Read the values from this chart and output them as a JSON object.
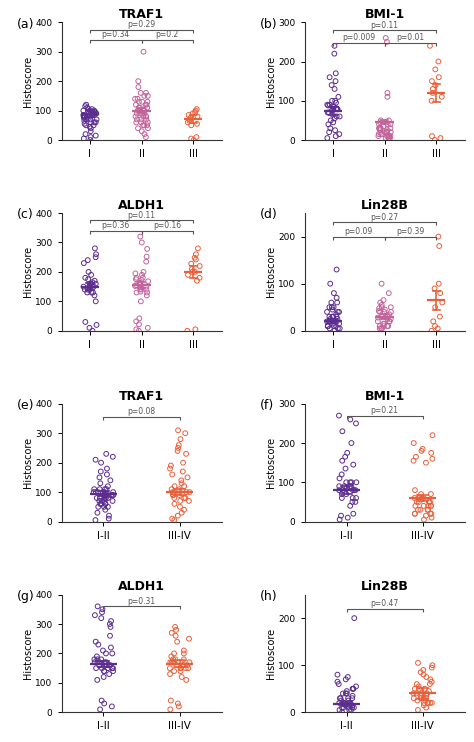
{
  "panels": [
    {
      "label": "(a)",
      "title": "TRAF1",
      "groups": [
        "I",
        "II",
        "III"
      ],
      "ylim": [
        0,
        400
      ],
      "yticks": [
        0,
        100,
        200,
        300,
        400
      ],
      "colors": [
        "#5B2D8E",
        "#C2649A",
        "#E8603A"
      ],
      "means": [
        90,
        100,
        72
      ],
      "sems": [
        12,
        8,
        14
      ],
      "pvals": [
        {
          "g1": 0,
          "g2": 2,
          "text": "p=0.29",
          "y": 375,
          "level": 0
        },
        {
          "g1": 0,
          "g2": 1,
          "text": "p=0.34",
          "y": 340,
          "level": 1
        },
        {
          "g1": 1,
          "g2": 2,
          "text": "p=0.2",
          "y": 340,
          "level": 1
        }
      ],
      "data": [
        [
          85,
          100,
          60,
          80,
          90,
          40,
          110,
          75,
          70,
          100,
          50,
          90,
          95,
          80,
          60,
          105,
          90,
          70,
          80,
          100,
          50,
          60,
          80,
          85,
          95,
          70,
          105,
          80,
          90,
          55,
          115,
          120,
          45,
          65,
          75,
          85,
          95,
          30,
          20,
          15,
          10,
          5,
          0
        ],
        [
          100,
          120,
          80,
          200,
          150,
          60,
          180,
          90,
          110,
          140,
          50,
          130,
          80,
          160,
          100,
          70,
          120,
          90,
          300,
          40,
          150,
          80,
          100,
          110,
          70,
          130,
          90,
          60,
          140,
          100,
          80,
          120,
          50,
          160,
          110,
          90,
          70,
          130,
          30,
          20,
          10,
          40,
          60,
          50
        ],
        [
          70,
          80,
          90,
          100,
          50,
          60,
          75,
          85,
          65,
          0,
          5,
          10,
          95,
          105,
          55
        ]
      ]
    },
    {
      "label": "(b)",
      "title": "BMI-1",
      "groups": [
        "I",
        "II",
        "III"
      ],
      "ylim": [
        0,
        300
      ],
      "yticks": [
        0,
        100,
        200,
        300
      ],
      "colors": [
        "#5B2D8E",
        "#C2649A",
        "#E8603A"
      ],
      "means": [
        75,
        45,
        120
      ],
      "sems": [
        10,
        5,
        22
      ],
      "pvals": [
        {
          "g1": 0,
          "g2": 2,
          "text": "p=0.11",
          "y": 280,
          "level": 0
        },
        {
          "g1": 0,
          "g2": 1,
          "text": "p=0.009",
          "y": 248,
          "level": 1
        },
        {
          "g1": 1,
          "g2": 2,
          "text": "p=0.01",
          "y": 248,
          "level": 1
        }
      ],
      "data": [
        [
          80,
          90,
          60,
          70,
          75,
          40,
          85,
          80,
          65,
          100,
          50,
          90,
          95,
          80,
          55,
          110,
          88,
          70,
          78,
          100,
          45,
          60,
          80,
          85,
          150,
          160,
          170,
          140,
          130,
          220,
          240,
          10,
          5,
          20,
          30,
          15,
          25
        ],
        [
          45,
          20,
          10,
          5,
          30,
          40,
          15,
          25,
          20,
          10,
          5,
          30,
          40,
          50,
          20,
          10,
          5,
          30,
          35,
          15,
          25,
          20,
          10,
          120,
          110,
          50,
          30,
          20,
          10,
          40,
          30,
          15,
          5,
          260,
          250
        ],
        [
          120,
          140,
          160,
          100,
          150,
          180,
          130,
          110,
          10,
          0,
          5,
          240,
          200
        ]
      ]
    },
    {
      "label": "(c)",
      "title": "ALDH1",
      "groups": [
        "I",
        "II",
        "III"
      ],
      "ylim": [
        0,
        400
      ],
      "yticks": [
        0,
        100,
        200,
        300,
        400
      ],
      "colors": [
        "#5B2D8E",
        "#C2649A",
        "#E8603A"
      ],
      "means": [
        150,
        155,
        200
      ],
      "sems": [
        12,
        10,
        20
      ],
      "pvals": [
        {
          "g1": 0,
          "g2": 2,
          "text": "p=0.11",
          "y": 375,
          "level": 0
        },
        {
          "g1": 0,
          "g2": 1,
          "text": "p=0.36",
          "y": 340,
          "level": 1
        },
        {
          "g1": 1,
          "g2": 2,
          "text": "p=0.16",
          "y": 340,
          "level": 1
        }
      ],
      "data": [
        [
          150,
          160,
          140,
          180,
          130,
          170,
          150,
          140,
          120,
          160,
          150,
          130,
          175,
          140,
          160,
          150,
          130,
          165,
          100,
          280,
          250,
          230,
          200,
          190,
          10,
          0,
          20,
          30,
          240,
          260
        ],
        [
          150,
          160,
          140,
          195,
          180,
          130,
          168,
          155,
          142,
          120,
          163,
          152,
          133,
          175,
          180,
          140,
          162,
          150,
          130,
          172,
          100,
          278,
          252,
          235,
          200,
          190,
          10,
          0,
          22,
          32,
          320,
          300,
          5,
          42
        ],
        [
          200,
          220,
          180,
          190,
          210,
          170,
          248,
          260,
          280,
          228,
          242,
          200,
          0,
          5
        ]
      ]
    },
    {
      "label": "(d)",
      "title": "Lin28B",
      "groups": [
        "I",
        "II",
        "III"
      ],
      "ylim": [
        0,
        250
      ],
      "yticks": [
        0,
        100,
        200
      ],
      "colors": [
        "#5B2D8E",
        "#C2649A",
        "#E8603A"
      ],
      "means": [
        20,
        30,
        65
      ],
      "sems": [
        4,
        5,
        20
      ],
      "pvals": [
        {
          "g1": 0,
          "g2": 2,
          "text": "p=0.27",
          "y": 230,
          "level": 0
        },
        {
          "g1": 0,
          "g2": 1,
          "text": "p=0.09",
          "y": 200,
          "level": 1
        },
        {
          "g1": 1,
          "g2": 2,
          "text": "p=0.39",
          "y": 200,
          "level": 1
        }
      ],
      "data": [
        [
          20,
          30,
          10,
          50,
          40,
          5,
          25,
          15,
          10,
          20,
          30,
          40,
          50,
          10,
          20,
          30,
          5,
          15,
          25,
          10,
          130,
          100,
          80,
          60,
          50,
          40,
          30,
          20,
          10,
          5,
          0,
          45,
          35,
          60,
          70
        ],
        [
          30,
          40,
          50,
          20,
          10,
          5,
          25,
          15,
          30,
          40,
          50,
          10,
          20,
          28,
          5,
          15,
          25,
          10,
          30,
          42,
          48,
          20,
          10,
          5,
          80,
          100,
          60,
          40,
          30,
          35,
          45,
          55,
          65
        ],
        [
          60,
          80,
          90,
          100,
          50,
          30,
          20,
          10,
          5,
          0,
          180,
          200
        ]
      ]
    },
    {
      "label": "(e)",
      "title": "TRAF1",
      "groups": [
        "I-II",
        "III-IV"
      ],
      "ylim": [
        0,
        400
      ],
      "yticks": [
        0,
        100,
        200,
        300,
        400
      ],
      "colors": [
        "#5B2D8E",
        "#E8603A"
      ],
      "means": [
        95,
        100
      ],
      "sems": [
        8,
        10
      ],
      "pvals": [
        {
          "g1": 0,
          "g2": 1,
          "text": "p=0.08",
          "y": 355,
          "level": 0
        }
      ],
      "data": [
        [
          100,
          120,
          80,
          90,
          110,
          70,
          100,
          90,
          80,
          100,
          50,
          90,
          100,
          80,
          60,
          110,
          90,
          70,
          80,
          100,
          50,
          60,
          80,
          90,
          100,
          70,
          110,
          80,
          90,
          60,
          200,
          180,
          160,
          140,
          220,
          150,
          130,
          170,
          110,
          70,
          60,
          50,
          30,
          20,
          10,
          5,
          40,
          230,
          210
        ],
        [
          100,
          120,
          80,
          90,
          110,
          70,
          100,
          90,
          80,
          100,
          50,
          90,
          100,
          80,
          300,
          310,
          280,
          260,
          250,
          230,
          240,
          200,
          190,
          10,
          5,
          30,
          20,
          40,
          60,
          70,
          130,
          150,
          160,
          120,
          110,
          140,
          170,
          180
        ]
      ]
    },
    {
      "label": "(f)",
      "title": "BMI-1",
      "groups": [
        "I-II",
        "III-IV"
      ],
      "ylim": [
        0,
        300
      ],
      "yticks": [
        0,
        100,
        200,
        300
      ],
      "colors": [
        "#5B2D8E",
        "#E8603A"
      ],
      "means": [
        80,
        60
      ],
      "sems": [
        10,
        8
      ],
      "pvals": [
        {
          "g1": 0,
          "g2": 1,
          "text": "p=0.21",
          "y": 270,
          "level": 0
        }
      ],
      "data": [
        [
          80,
          100,
          60,
          120,
          90,
          40,
          85,
          80,
          70,
          100,
          50,
          90,
          100,
          80,
          60,
          110,
          90,
          70,
          80,
          100,
          50,
          60,
          80,
          90,
          270,
          260,
          250,
          230,
          200,
          10,
          5,
          20,
          15,
          155,
          165,
          175,
          145,
          135
        ],
        [
          60,
          80,
          40,
          50,
          70,
          30,
          60,
          50,
          40,
          60,
          20,
          50,
          60,
          40,
          20,
          70,
          50,
          30,
          40,
          60,
          20,
          30,
          40,
          50,
          200,
          220,
          180,
          160,
          150,
          10,
          5,
          15,
          20,
          30,
          165,
          175,
          185,
          155
        ]
      ]
    },
    {
      "label": "(g)",
      "title": "ALDH1",
      "groups": [
        "I-II",
        "III-IV"
      ],
      "ylim": [
        0,
        400
      ],
      "yticks": [
        0,
        100,
        200,
        300,
        400
      ],
      "colors": [
        "#5B2D8E",
        "#E8603A"
      ],
      "means": [
        165,
        165
      ],
      "sems": [
        10,
        12
      ],
      "pvals": [
        {
          "g1": 0,
          "g2": 1,
          "text": "p=0.31",
          "y": 360,
          "level": 0
        }
      ],
      "data": [
        [
          160,
          170,
          150,
          200,
          180,
          140,
          170,
          160,
          150,
          140,
          170,
          160,
          150,
          170,
          180,
          150,
          170,
          160,
          150,
          180,
          110,
          290,
          260,
          240,
          210,
          200,
          20,
          10,
          30,
          40,
          360,
          350,
          330,
          310,
          300,
          320,
          340,
          120,
          130,
          140,
          190,
          220,
          230
        ],
        [
          160,
          170,
          150,
          200,
          180,
          140,
          170,
          160,
          150,
          140,
          170,
          160,
          150,
          170,
          180,
          150,
          170,
          160,
          150,
          180,
          110,
          290,
          260,
          240,
          210,
          200,
          20,
          10,
          30,
          40,
          280,
          270,
          250,
          130,
          120,
          190
        ]
      ]
    },
    {
      "label": "(h)",
      "title": "Lin28B",
      "groups": [
        "I-II",
        "III-IV"
      ],
      "ylim": [
        0,
        250
      ],
      "yticks": [
        0,
        100,
        200
      ],
      "colors": [
        "#5B2D8E",
        "#E8603A"
      ],
      "means": [
        18,
        40
      ],
      "sems": [
        4,
        12
      ],
      "pvals": [
        {
          "g1": 0,
          "g2": 1,
          "text": "p=0.47",
          "y": 220,
          "level": 0
        }
      ],
      "data": [
        [
          20,
          30,
          10,
          50,
          40,
          5,
          25,
          15,
          10,
          20,
          30,
          40,
          50,
          10,
          20,
          30,
          5,
          15,
          25,
          10,
          200,
          80,
          60,
          50,
          40,
          30,
          20,
          10,
          5,
          0,
          45,
          35,
          55,
          65,
          70,
          75
        ],
        [
          40,
          50,
          30,
          60,
          70,
          20,
          35,
          25,
          30,
          40,
          50,
          20,
          30,
          40,
          15,
          25,
          35,
          20,
          30,
          40,
          80,
          90,
          100,
          60,
          50,
          10,
          5,
          20,
          45,
          55,
          65,
          75,
          85,
          95,
          105
        ]
      ]
    }
  ],
  "fig_bg": "#ffffff",
  "spine_color": "#333333"
}
